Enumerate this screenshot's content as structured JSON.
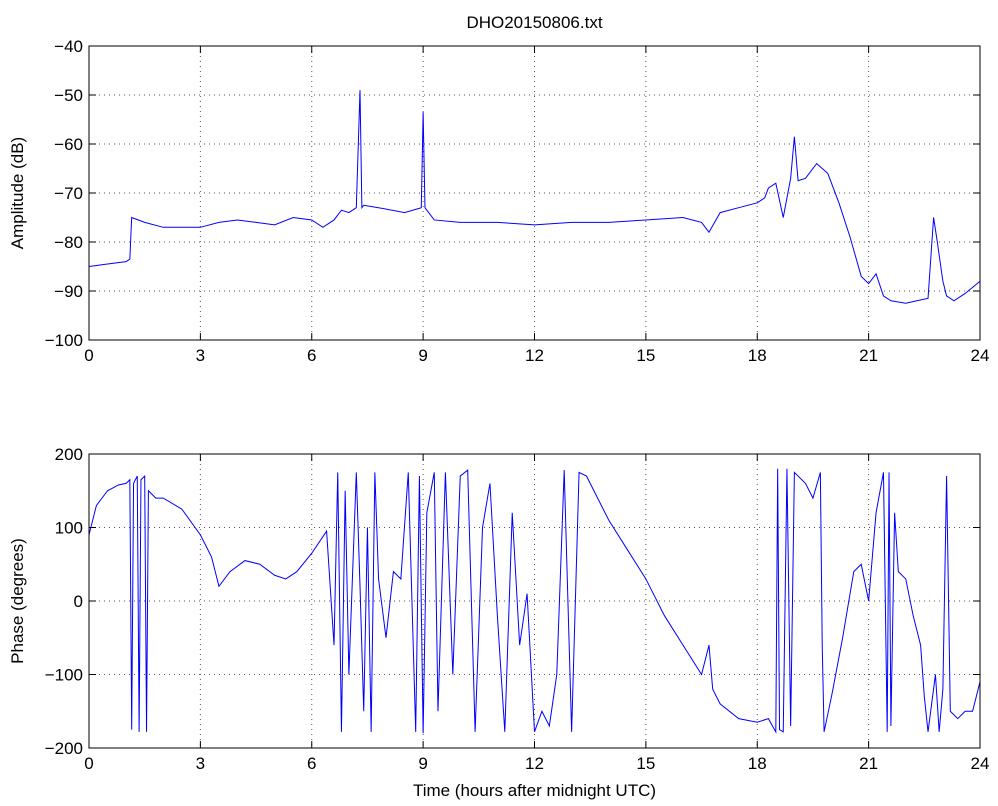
{
  "chart_data": [
    {
      "type": "line",
      "title": "DHO20150806.txt",
      "xlabel": "",
      "ylabel": "Amplitude (dB)",
      "xlim": [
        0,
        24
      ],
      "ylim": [
        -100,
        -40
      ],
      "xticks": [
        "0",
        "3",
        "6",
        "9",
        "12",
        "15",
        "18",
        "21",
        "24"
      ],
      "yticks": [
        "−100",
        "−90",
        "−80",
        "−70",
        "−60",
        "−50",
        "−40"
      ],
      "grid": true,
      "color": "#0000ff",
      "series": [
        {
          "x": [
            0,
            0.5,
            1.0,
            1.1,
            1.15,
            1.5,
            2,
            3,
            3.5,
            4,
            4.5,
            5,
            5.5,
            6,
            6.3,
            6.6,
            6.8,
            7.0,
            7.2,
            7.3,
            7.35,
            7.4,
            7.8,
            8.5,
            8.95,
            9.0,
            9.05,
            9.3,
            10,
            11,
            12,
            13,
            14,
            15,
            16,
            16.5,
            16.7,
            17,
            17.5,
            18,
            18.2,
            18.3,
            18.5,
            18.7,
            18.9,
            19.0,
            19.1,
            19.3,
            19.6,
            19.9,
            20.2,
            20.5,
            20.8,
            21.0,
            21.2,
            21.4,
            21.6,
            22.0,
            22.3,
            22.6,
            22.75,
            22.85,
            23.0,
            23.1,
            23.3,
            23.6,
            24
          ],
          "y": [
            -85,
            -84.5,
            -84,
            -83.5,
            -75,
            -76,
            -77,
            -77,
            -76,
            -75.5,
            -76,
            -76.5,
            -75,
            -75.5,
            -77,
            -75.5,
            -73.5,
            -74,
            -73,
            -49,
            -73,
            -72.5,
            -73,
            -74,
            -73,
            -53.5,
            -73,
            -75.5,
            -76,
            -76,
            -76.5,
            -76,
            -76,
            -75.5,
            -75,
            -76,
            -78,
            -74,
            -73,
            -72,
            -71,
            -69,
            -68,
            -75,
            -67,
            -58.5,
            -67.5,
            -67,
            -64,
            -66,
            -72,
            -79,
            -87,
            -88.5,
            -86.5,
            -91,
            -92,
            -92.5,
            -92,
            -91.5,
            -75,
            -80,
            -88,
            -91,
            -92,
            -90.5,
            -88
          ]
        }
      ]
    },
    {
      "type": "line",
      "title": "",
      "xlabel": "Time (hours after midnight UTC)",
      "ylabel": "Phase (degrees)",
      "xlim": [
        0,
        24
      ],
      "ylim": [
        -200,
        200
      ],
      "xticks": [
        "0",
        "3",
        "6",
        "9",
        "12",
        "15",
        "18",
        "21",
        "24"
      ],
      "yticks": [
        "−200",
        "−100",
        "0",
        "100",
        "200"
      ],
      "grid": true,
      "color": "#0000ff",
      "series": [
        {
          "x": [
            0,
            0.2,
            0.5,
            0.8,
            1.0,
            1.1,
            1.15,
            1.2,
            1.3,
            1.35,
            1.4,
            1.5,
            1.55,
            1.6,
            1.8,
            2.0,
            2.5,
            3.0,
            3.3,
            3.5,
            3.8,
            4.2,
            4.6,
            5.0,
            5.3,
            5.6,
            6.0,
            6.4,
            6.6,
            6.7,
            6.8,
            6.9,
            7.0,
            7.2,
            7.3,
            7.4,
            7.5,
            7.6,
            7.7,
            7.8,
            8.0,
            8.2,
            8.4,
            8.6,
            8.8,
            8.9,
            9.0,
            9.1,
            9.3,
            9.4,
            9.6,
            9.8,
            10.0,
            10.2,
            10.4,
            10.6,
            10.8,
            11.0,
            11.2,
            11.4,
            11.6,
            11.8,
            12.0,
            12.2,
            12.4,
            12.6,
            12.8,
            13.0,
            13.2,
            13.4,
            13.6,
            14.0,
            14.5,
            15.0,
            15.5,
            16.0,
            16.5,
            16.7,
            16.8,
            17.0,
            17.5,
            18.0,
            18.3,
            18.5,
            18.55,
            18.6,
            18.7,
            18.8,
            18.9,
            19.0,
            19.3,
            19.5,
            19.7,
            19.75,
            19.8,
            20.0,
            20.3,
            20.6,
            20.8,
            21.0,
            21.2,
            21.4,
            21.5,
            21.55,
            21.6,
            21.7,
            21.8,
            22.0,
            22.2,
            22.4,
            22.5,
            22.6,
            22.8,
            22.9,
            23.0,
            23.1,
            23.2,
            23.4,
            23.6,
            23.8,
            24.0
          ],
          "y": [
            90,
            130,
            150,
            158,
            160,
            165,
            -175,
            160,
            170,
            -178,
            165,
            170,
            -178,
            150,
            140,
            140,
            125,
            90,
            60,
            20,
            40,
            55,
            50,
            35,
            30,
            40,
            65,
            95,
            -60,
            175,
            -178,
            150,
            -100,
            175,
            20,
            -150,
            100,
            -178,
            175,
            30,
            -50,
            40,
            30,
            175,
            -178,
            170,
            -180,
            120,
            175,
            -150,
            175,
            -100,
            170,
            178,
            -178,
            100,
            160,
            -20,
            -178,
            120,
            -60,
            10,
            -178,
            -150,
            -170,
            -100,
            178,
            -178,
            175,
            170,
            150,
            110,
            70,
            30,
            -20,
            -60,
            -100,
            -60,
            -120,
            -140,
            -160,
            -165,
            -160,
            -178,
            180,
            -175,
            -178,
            180,
            -170,
            175,
            160,
            140,
            175,
            -60,
            -178,
            -130,
            -50,
            40,
            50,
            0,
            120,
            175,
            -178,
            175,
            -170,
            120,
            40,
            30,
            -20,
            -60,
            -130,
            -178,
            -100,
            -178,
            -120,
            170,
            -150,
            -160,
            -150,
            -150,
            -110
          ]
        }
      ]
    }
  ]
}
